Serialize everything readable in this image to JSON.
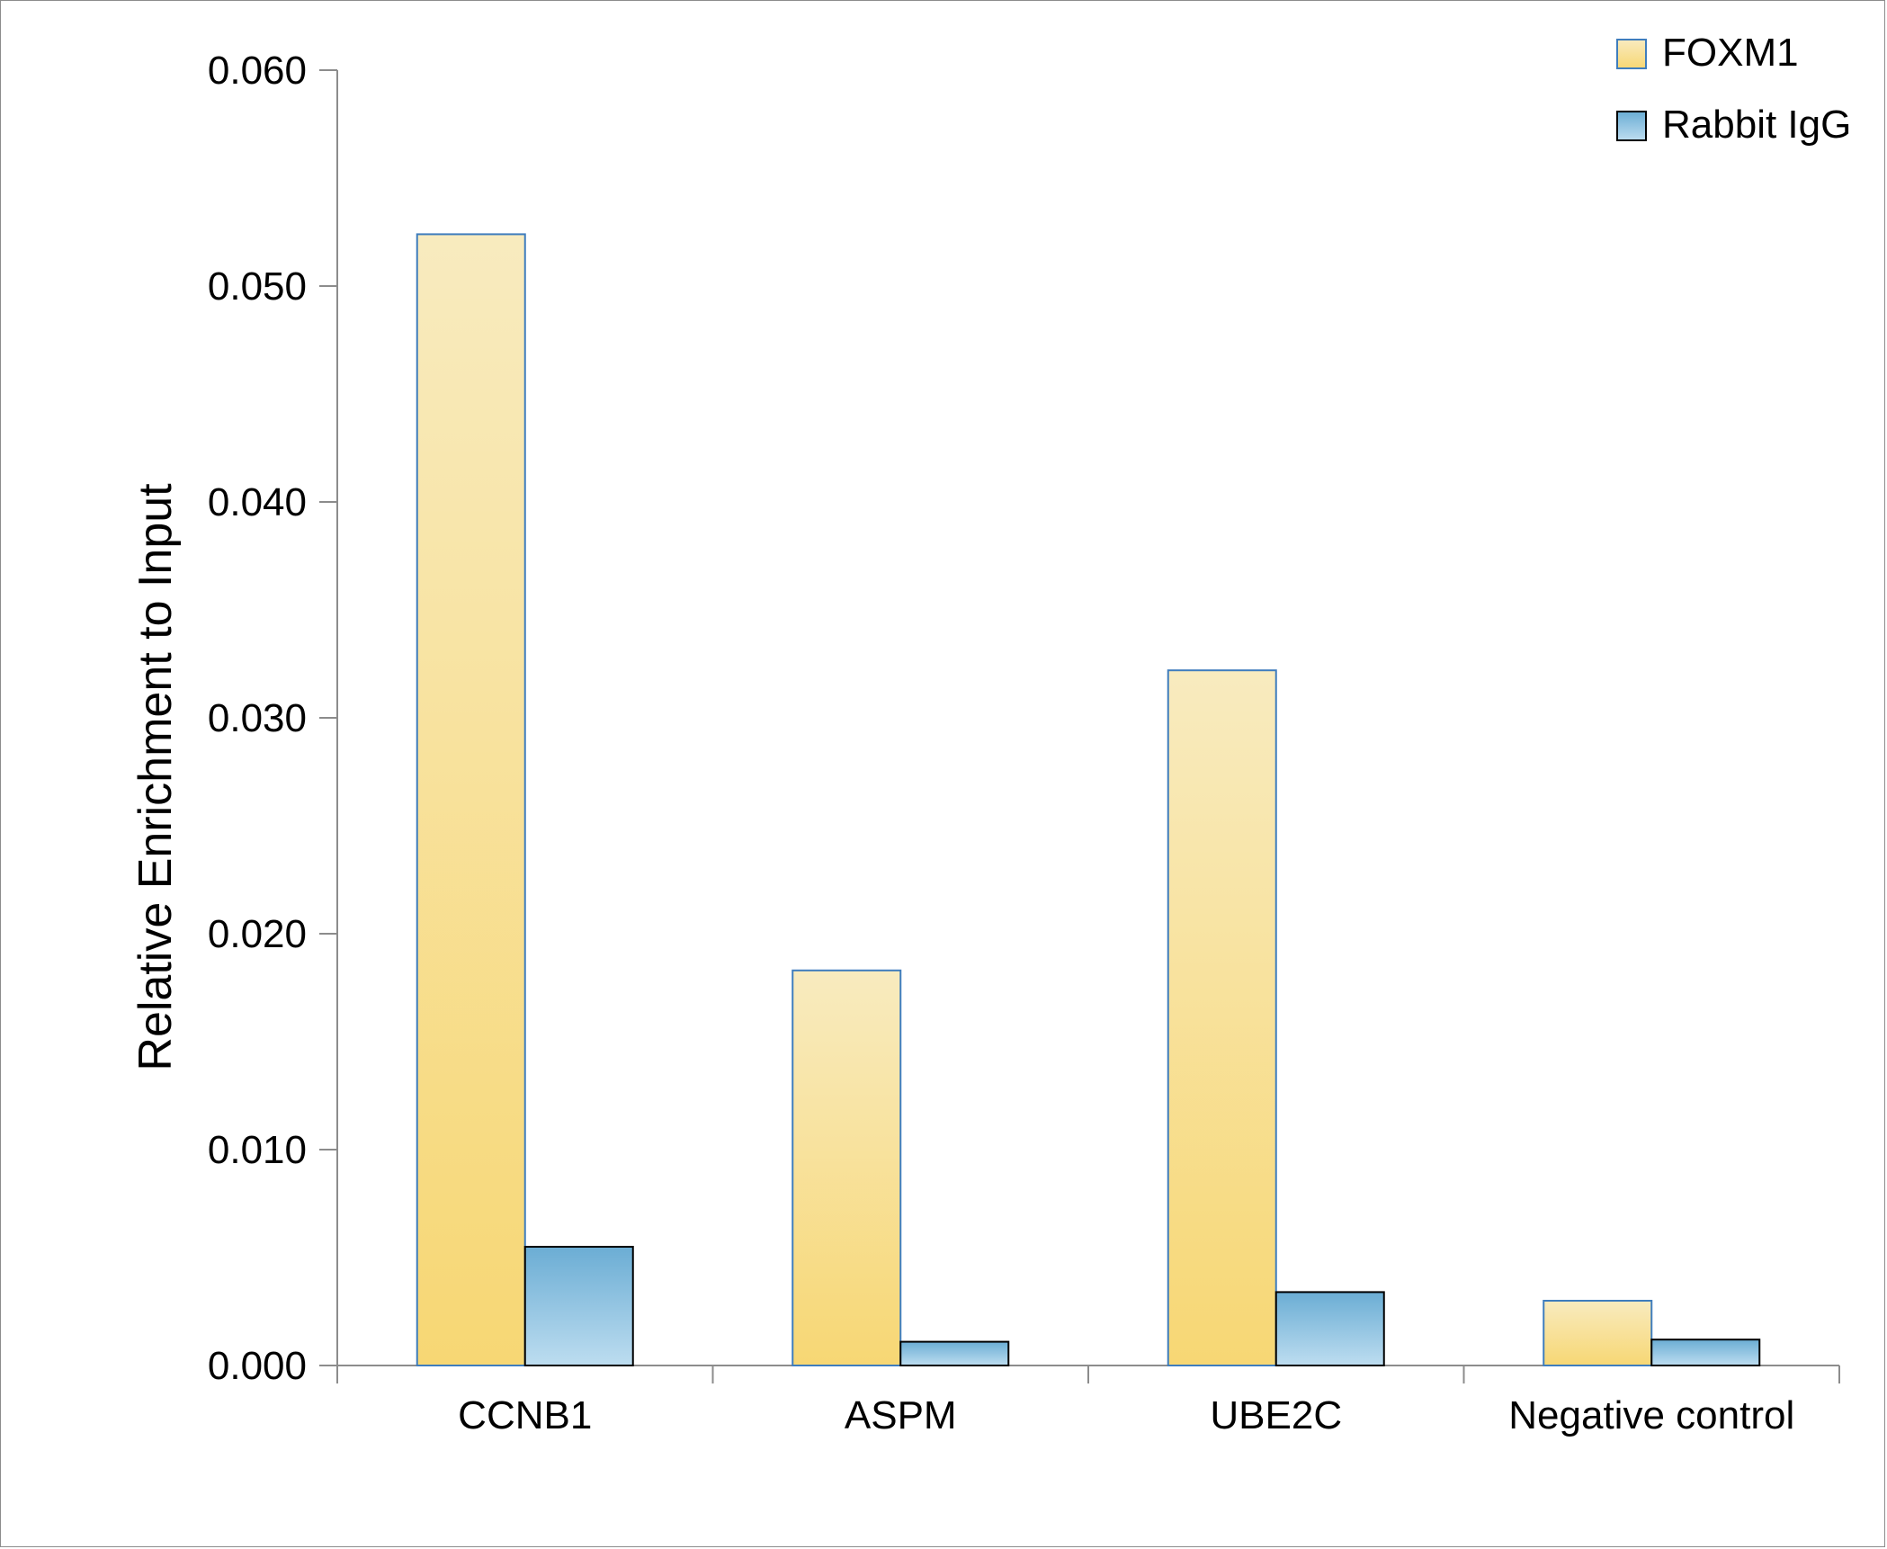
{
  "chart_data": {
    "type": "bar",
    "title": "",
    "xlabel": "",
    "ylabel": "Relative Enrichment to Input",
    "ylim": [
      0,
      0.06
    ],
    "yticks": [
      "0.000",
      "0.010",
      "0.020",
      "0.030",
      "0.040",
      "0.050",
      "0.060"
    ],
    "categories": [
      "CCNB1",
      "ASPM",
      "UBE2C",
      "Negative control"
    ],
    "series": [
      {
        "name": "FOXM1",
        "values": [
          0.0524,
          0.0183,
          0.0322,
          0.003
        ],
        "color_top": "#f8ebbf",
        "color_bottom": "#f7d774",
        "stroke": "#3f7dbd"
      },
      {
        "name": "Rabbit IgG",
        "values": [
          0.0055,
          0.0011,
          0.0034,
          0.0012
        ],
        "color_top": "#6badd4",
        "color_bottom": "#bdddf0",
        "stroke": "#000000"
      }
    ],
    "grid": false,
    "legend_position": "top-right"
  }
}
